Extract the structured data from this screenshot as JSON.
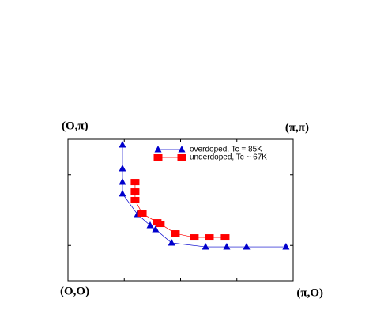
{
  "chart_data": {
    "type": "line",
    "annotations": [
      "(O,π)",
      "(π,π)",
      "(O,O)",
      "(π,O)"
    ],
    "xlim": [
      0,
      1
    ],
    "ylim": [
      0,
      1
    ],
    "xticks": [
      0.25,
      0.5,
      0.75
    ],
    "yticks": [
      0.25,
      0.5,
      0.75
    ],
    "legend": "upper right",
    "series": [
      {
        "name": "overdoped, Tc = 85K",
        "color": "#0000cc",
        "marker": "triangle",
        "x": [
          0.242,
          0.242,
          0.242,
          0.242,
          0.309,
          0.365,
          0.389,
          0.46,
          0.611,
          0.705,
          0.793,
          0.968
        ],
        "values": [
          0.961,
          0.793,
          0.698,
          0.615,
          0.469,
          0.391,
          0.363,
          0.268,
          0.24,
          0.24,
          0.24,
          0.24
        ]
      },
      {
        "name": "underdoped, Tc ~ 67K",
        "color": "#ff0000",
        "marker": "square",
        "x": [
          0.298,
          0.298,
          0.298,
          0.33,
          0.396,
          0.41,
          0.477,
          0.561,
          0.628,
          0.698
        ],
        "values": [
          0.698,
          0.631,
          0.57,
          0.475,
          0.413,
          0.402,
          0.335,
          0.307,
          0.307,
          0.307
        ]
      }
    ]
  }
}
